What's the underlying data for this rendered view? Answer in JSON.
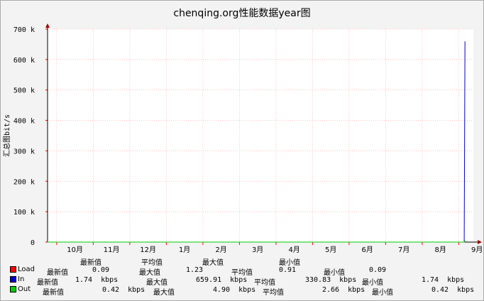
{
  "chart_data": {
    "type": "line",
    "title": "chenqing.org性能数据year图",
    "ylabel": "汇总图bit/s",
    "ylim": [
      0,
      700000
    ],
    "yticks": [
      {
        "value": 0,
        "label": "0"
      },
      {
        "value": 100000,
        "label": "100 k"
      },
      {
        "value": 200000,
        "label": "200 k"
      },
      {
        "value": 300000,
        "label": "300 k"
      },
      {
        "value": 400000,
        "label": "400 k"
      },
      {
        "value": 500000,
        "label": "500 k"
      },
      {
        "value": 600000,
        "label": "600 k"
      },
      {
        "value": 700000,
        "label": "700 k"
      }
    ],
    "xtick_labels": [
      "10月",
      "11月",
      "12月",
      "1月",
      "2月",
      "3月",
      "4月",
      "5月",
      "6月",
      "7月",
      "8月",
      "9月"
    ],
    "xrange_months": [
      9.75,
      21.4
    ],
    "grid": true,
    "series": [
      {
        "name": "Load",
        "color": "#ff0000",
        "x_month": [
          9.75,
          21.15,
          21.17
        ],
        "values": [
          0,
          0,
          0
        ]
      },
      {
        "name": "In",
        "color": "#0000cc",
        "x_month": [
          9.75,
          21.15,
          21.17
        ],
        "values": [
          0,
          0,
          659910
        ]
      },
      {
        "name": "Out",
        "color": "#00cc00",
        "x_month": [
          9.75,
          21.15,
          21.17
        ],
        "values": [
          0,
          0,
          4900
        ]
      }
    ]
  },
  "legend_header": {
    "latest": "最新值",
    "avg": "平均值",
    "max": "最大值",
    "min": "最小值"
  },
  "legend": [
    {
      "name": "Load",
      "color": "#ff0000",
      "l1": "最新值",
      "v1": "0.09",
      "l2": "最大值",
      "v2": "1.23",
      "l3": "平均值",
      "v3": "0.91",
      "l4": "最小值",
      "v4": "0.09"
    },
    {
      "name": "In",
      "color": "#0000cc",
      "l1": "最新值",
      "v1": "1.74  kbps",
      "l2": "最大值",
      "v2": "659.91  kbps",
      "l3": "平均值",
      "v3": "330.83  kbps",
      "l4": "最小值",
      "v4": "1.74  kbps"
    },
    {
      "name": "Out",
      "color": "#00cc00",
      "l1": "最新值",
      "v1": "0.42  kbps",
      "l2": "最大值",
      "v2": "4.90  kbps",
      "l3": "平均值",
      "v3": "2.66  kbps",
      "l4": "最小值",
      "v4": "0.42  kbps"
    }
  ]
}
